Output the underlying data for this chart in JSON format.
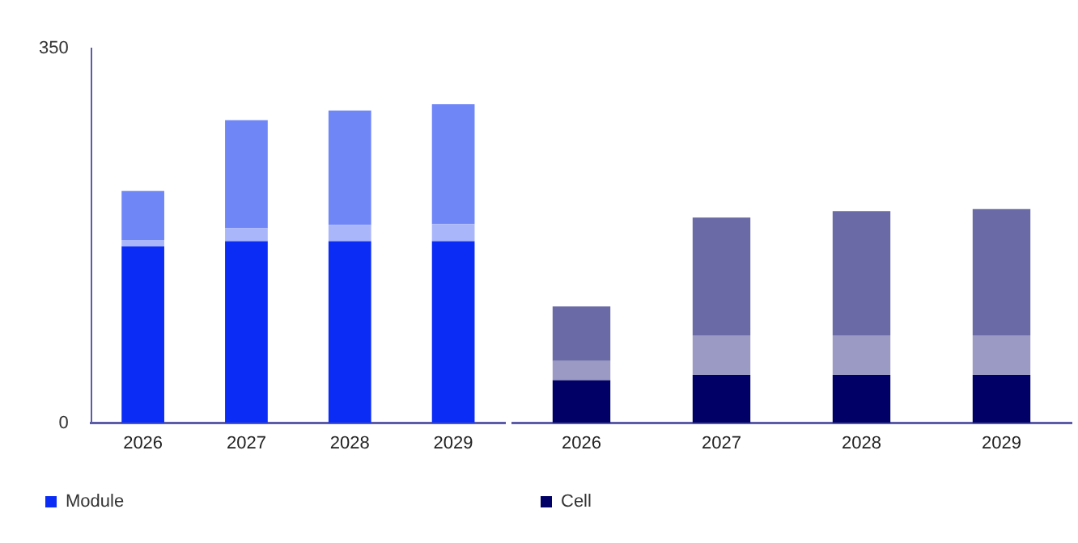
{
  "chart_data": [
    {
      "type": "bar",
      "stacked": true,
      "categories": [
        "2026",
        "2027",
        "2028",
        "2029"
      ],
      "series": [
        {
          "name": "Module",
          "color": "#0a2cf5",
          "values": [
            165,
            170,
            170,
            170
          ]
        },
        {
          "color": "#a9b6fa",
          "values": [
            6,
            12,
            15,
            16
          ]
        },
        {
          "color": "#6f86f7",
          "values": [
            46,
            101,
            107,
            112
          ]
        }
      ],
      "ylim": [
        0,
        350
      ],
      "yticks": [
        0,
        350
      ],
      "grid": false,
      "legend": "bottom"
    },
    {
      "type": "bar",
      "stacked": true,
      "categories": [
        "2026",
        "2027",
        "2028",
        "2029"
      ],
      "series": [
        {
          "name": "Cell",
          "color": "#000066",
          "values": [
            40,
            45,
            45,
            45
          ]
        },
        {
          "color": "#9a9ac4",
          "values": [
            18,
            37,
            37,
            37
          ]
        },
        {
          "color": "#6a6aa6",
          "values": [
            51,
            110,
            116,
            118
          ]
        }
      ],
      "ylim": [
        0,
        350
      ],
      "grid": false,
      "legend": "bottom",
      "tick_labels": "x"
    }
  ]
}
